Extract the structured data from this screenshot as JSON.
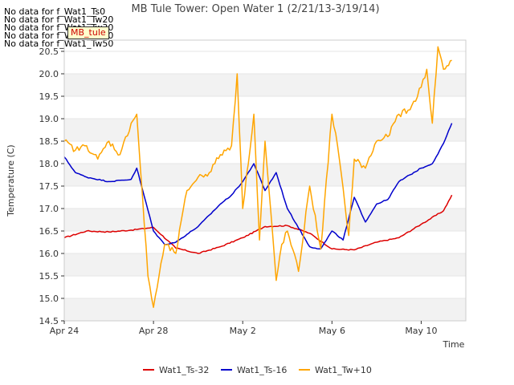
{
  "chart_data": {
    "type": "line",
    "title": "MB Tule Tower: Open Water 1 (2/21/13-3/19/14)",
    "xlabel": "Time",
    "ylabel": "Temperature (C)",
    "x_range": [
      "2013-04-24",
      "2013-05-12"
    ],
    "ylim": [
      14.5,
      20.75
    ],
    "x_ticks": [
      "Apr 24",
      "Apr 28",
      "May 2",
      "May 6",
      "May 10"
    ],
    "x_tick_dates": [
      "2013-04-24",
      "2013-04-28",
      "2013-05-02",
      "2013-05-06",
      "2013-05-10"
    ],
    "y_ticks": [
      "14.5",
      "15.0",
      "15.5",
      "16.0",
      "16.5",
      "17.0",
      "17.5",
      "18.0",
      "18.5",
      "19.0",
      "19.5",
      "20.0",
      "20.5"
    ],
    "y_tick_values": [
      14.5,
      15.0,
      15.5,
      16.0,
      16.5,
      17.0,
      17.5,
      18.0,
      18.5,
      19.0,
      19.5,
      20.0,
      20.5
    ],
    "grid": "horizontal bands",
    "legend_position": "bottom",
    "no_data_messages": [
      "No data for f_Wat1_Ts0",
      "No data for f_Wat1_Tw20",
      "No data for f_Wat1_Tw30",
      "No data for f_Wat1_Tw40",
      "No data for f_Wat1_Tw50"
    ],
    "tag_label": "MB_tule",
    "series": [
      {
        "name": "Wat1_Ts-32",
        "color": "#dd0000",
        "x": [
          "2013-04-24",
          "2013-04-25",
          "2013-04-26",
          "2013-04-27",
          "2013-04-28",
          "2013-04-29",
          "2013-04-30",
          "2013-05-01",
          "2013-05-02",
          "2013-05-03",
          "2013-05-04",
          "2013-05-05",
          "2013-05-06",
          "2013-05-07",
          "2013-05-08",
          "2013-05-09",
          "2013-05-10",
          "2013-05-11",
          "2013-05-11T09:00"
        ],
        "values": [
          16.35,
          16.5,
          16.48,
          16.52,
          16.58,
          16.12,
          16.0,
          16.15,
          16.35,
          16.6,
          16.62,
          16.45,
          16.1,
          16.08,
          16.25,
          16.35,
          16.65,
          16.95,
          17.3
        ]
      },
      {
        "name": "Wat1_Ts-16",
        "color": "#0000cc",
        "x": [
          "2013-04-24",
          "2013-04-24T12:00",
          "2013-04-25",
          "2013-04-26",
          "2013-04-27",
          "2013-04-27T06:00",
          "2013-04-28",
          "2013-04-28T12:00",
          "2013-04-29",
          "2013-04-30",
          "2013-05-01",
          "2013-05-01T12:00",
          "2013-05-02",
          "2013-05-02T12:00",
          "2013-05-03",
          "2013-05-03T12:00",
          "2013-05-04",
          "2013-05-05",
          "2013-05-05T12:00",
          "2013-05-06",
          "2013-05-06T12:00",
          "2013-05-07",
          "2013-05-07T12:00",
          "2013-05-08",
          "2013-05-08T12:00",
          "2013-05-09",
          "2013-05-10",
          "2013-05-10T12:00",
          "2013-05-11",
          "2013-05-11T09:00"
        ],
        "values": [
          18.15,
          17.8,
          17.7,
          17.6,
          17.65,
          17.9,
          16.5,
          16.2,
          16.25,
          16.6,
          17.1,
          17.3,
          17.6,
          18.0,
          17.4,
          17.8,
          17.0,
          16.15,
          16.1,
          16.5,
          16.3,
          17.25,
          16.7,
          17.1,
          17.2,
          17.6,
          17.9,
          18.0,
          18.45,
          18.9
        ]
      },
      {
        "name": "Wat1_Tw+10",
        "color": "#ffa500",
        "x": [
          "2013-04-24",
          "2013-04-24T12:00",
          "2013-04-25",
          "2013-04-25T12:00",
          "2013-04-26",
          "2013-04-26T12:00",
          "2013-04-27",
          "2013-04-27T06:00",
          "2013-04-27T18:00",
          "2013-04-28",
          "2013-04-28T12:00",
          "2013-04-29",
          "2013-04-29T12:00",
          "2013-04-30",
          "2013-04-30T12:00",
          "2013-05-01",
          "2013-05-01T12:00",
          "2013-05-01T18:00",
          "2013-05-02",
          "2013-05-02T12:00",
          "2013-05-02T18:00",
          "2013-05-03",
          "2013-05-03T12:00",
          "2013-05-03T18:00",
          "2013-05-04",
          "2013-05-04T12:00",
          "2013-05-05",
          "2013-05-05T12:00",
          "2013-05-06",
          "2013-05-06T06:00",
          "2013-05-06T18:00",
          "2013-05-07",
          "2013-05-07T12:00",
          "2013-05-08",
          "2013-05-08T12:00",
          "2013-05-09",
          "2013-05-09T12:00",
          "2013-05-10",
          "2013-05-10T06:00",
          "2013-05-10T12:00",
          "2013-05-10T18:00",
          "2013-05-11",
          "2013-05-11T09:00"
        ],
        "values": [
          18.5,
          18.3,
          18.4,
          18.1,
          18.5,
          18.2,
          18.9,
          19.1,
          15.5,
          14.8,
          16.2,
          16.0,
          17.4,
          17.7,
          17.8,
          18.2,
          18.4,
          20.0,
          17.0,
          19.1,
          16.3,
          18.5,
          15.4,
          16.2,
          16.5,
          15.6,
          17.5,
          16.1,
          19.1,
          18.4,
          16.4,
          18.1,
          17.9,
          18.5,
          18.6,
          19.1,
          19.2,
          19.7,
          20.1,
          18.9,
          20.6,
          20.1,
          20.3
        ]
      }
    ]
  }
}
